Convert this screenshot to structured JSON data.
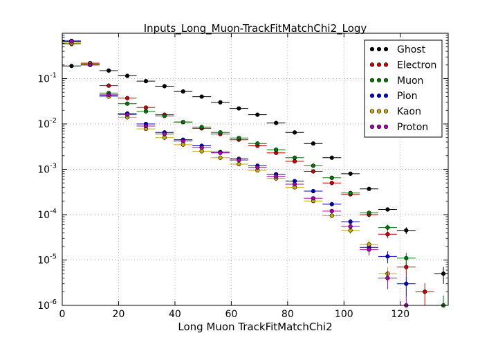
{
  "chart_data": {
    "type": "scatter",
    "title": "Inputs_Long_Muon-TrackFitMatchChi2_Logy",
    "xlabel": "Long Muon TrackFitMatchChi2",
    "ylabel": "",
    "xlim": [
      0,
      137
    ],
    "ylim": [
      1e-06,
      1
    ],
    "yscale": "log",
    "grid": true,
    "legend_position": "top-right",
    "bin_width": 6.6,
    "x_ticks": [
      {
        "value": 0,
        "label": "0"
      },
      {
        "value": 20,
        "label": "20"
      },
      {
        "value": 40,
        "label": "40"
      },
      {
        "value": 60,
        "label": "60"
      },
      {
        "value": 80,
        "label": "80"
      },
      {
        "value": 100,
        "label": "100"
      },
      {
        "value": 120,
        "label": "120"
      }
    ],
    "y_ticks": [
      {
        "value": 1e-06,
        "base": "10",
        "exp": "-6"
      },
      {
        "value": 1e-05,
        "base": "10",
        "exp": "-5"
      },
      {
        "value": 0.0001,
        "base": "10",
        "exp": "-4"
      },
      {
        "value": 0.001,
        "base": "10",
        "exp": "-3"
      },
      {
        "value": 0.01,
        "base": "10",
        "exp": "-2"
      },
      {
        "value": 0.1,
        "base": "10",
        "exp": "-1"
      }
    ],
    "series": [
      {
        "name": "Ghost",
        "color": "#000000",
        "x": [
          3.3,
          9.9,
          16.5,
          23.1,
          29.7,
          36.3,
          42.9,
          49.5,
          56.1,
          62.7,
          69.3,
          75.9,
          82.5,
          89.1,
          95.7,
          102.3,
          108.9,
          115.5,
          122.1,
          128.7,
          135.3
        ],
        "y": [
          0.19,
          0.2,
          0.15,
          0.115,
          0.088,
          0.068,
          0.052,
          0.04,
          0.03,
          0.022,
          0.016,
          0.0105,
          0.0065,
          0.0037,
          0.0018,
          0.0008,
          0.00037,
          0.00013,
          4.5e-05,
          null,
          5e-06
        ]
      },
      {
        "name": "Electron",
        "color": "#cc0000",
        "x": [
          3.3,
          9.9,
          16.5,
          23.1,
          29.7,
          36.3,
          42.9,
          49.5,
          56.1,
          62.7,
          69.3,
          75.9,
          82.5,
          89.1,
          95.7,
          102.3,
          108.9,
          115.5,
          122.1,
          128.7
        ],
        "y": [
          0.58,
          0.22,
          0.07,
          0.037,
          0.023,
          0.016,
          0.011,
          0.008,
          0.006,
          0.0045,
          0.0033,
          0.0023,
          0.0015,
          0.0009,
          0.0005,
          0.00028,
          0.0001,
          3.7e-05,
          7e-06,
          2e-06
        ]
      },
      {
        "name": "Muon",
        "color": "#007700",
        "x": [
          3.3,
          9.9,
          16.5,
          23.1,
          29.7,
          36.3,
          42.9,
          49.5,
          56.1,
          62.7,
          69.3,
          75.9,
          82.5,
          89.1,
          95.7,
          102.3,
          108.9,
          115.5,
          122.1,
          128.7,
          135.3
        ],
        "y": [
          0.64,
          0.2,
          0.048,
          0.028,
          0.019,
          0.015,
          0.011,
          0.0085,
          0.0065,
          0.0049,
          0.0037,
          0.0027,
          0.0018,
          0.0012,
          0.00065,
          0.0003,
          0.00011,
          5.2e-05,
          1.1e-05,
          null,
          1e-06
        ]
      },
      {
        "name": "Pion",
        "color": "#0000cc",
        "x": [
          3.3,
          9.9,
          16.5,
          23.1,
          29.7,
          36.3,
          42.9,
          49.5,
          56.1,
          62.7,
          69.3,
          75.9,
          82.5,
          89.1,
          95.7,
          102.3,
          108.9,
          115.5,
          122.1
        ],
        "y": [
          0.68,
          0.21,
          0.042,
          0.017,
          0.01,
          0.0065,
          0.0045,
          0.0033,
          0.0024,
          0.0017,
          0.0012,
          0.00078,
          0.00055,
          0.00033,
          0.00017,
          7e-05,
          1.9e-05,
          1.2e-05,
          3e-06
        ]
      },
      {
        "name": "Kaon",
        "color": "#ccaa00",
        "x": [
          3.3,
          9.9,
          16.5,
          23.1,
          29.7,
          36.3,
          42.9,
          49.5,
          56.1,
          62.7,
          69.3,
          75.9,
          82.5,
          89.1,
          95.7,
          102.3,
          108.9,
          115.5
        ],
        "y": [
          0.6,
          0.21,
          0.04,
          0.014,
          0.0078,
          0.005,
          0.0035,
          0.0025,
          0.0018,
          0.0013,
          0.00095,
          0.00063,
          0.0004,
          0.0002,
          9.5e-05,
          4.5e-05,
          2.2e-05,
          5e-06
        ]
      },
      {
        "name": "Proton",
        "color": "#aa00aa",
        "x": [
          3.3,
          9.9,
          16.5,
          23.1,
          29.7,
          36.3,
          42.9,
          49.5,
          56.1,
          62.7,
          69.3,
          75.9,
          82.5,
          89.1,
          95.7,
          102.3,
          108.9,
          115.5,
          122.1
        ],
        "y": [
          0.66,
          0.2,
          0.044,
          0.016,
          0.009,
          0.006,
          0.0042,
          0.003,
          0.0023,
          0.0016,
          0.0011,
          0.0007,
          0.00047,
          0.00023,
          0.00012,
          5.5e-05,
          1.7e-05,
          4e-06,
          1e-06
        ]
      }
    ]
  }
}
